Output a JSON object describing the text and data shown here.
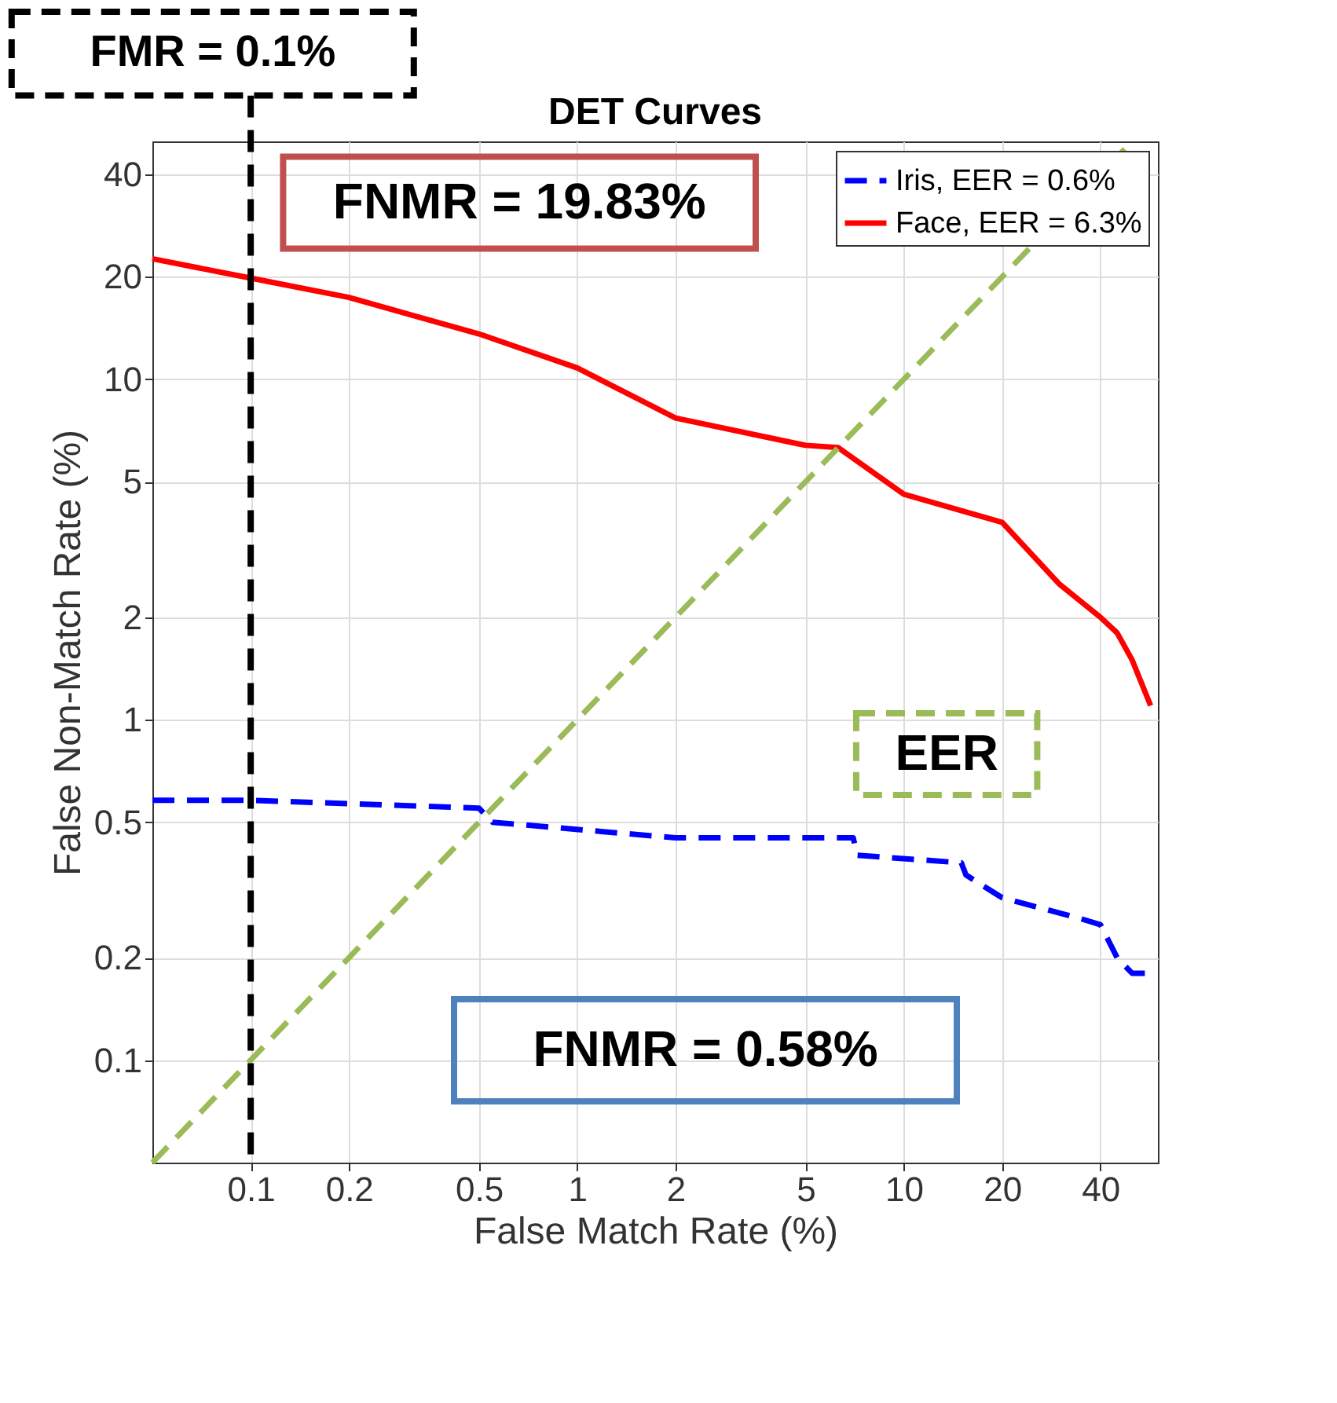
{
  "chart_data": {
    "type": "line",
    "title": "DET Curves",
    "xlabel": "False Match Rate (%)",
    "ylabel": "False Non-Match Rate (%)",
    "xlim": [
      0.05,
      60
    ],
    "ylim": [
      0.05,
      50
    ],
    "xticks": [
      0.1,
      0.2,
      0.5,
      1,
      2,
      5,
      10,
      20,
      40
    ],
    "yticks": [
      0.1,
      0.2,
      0.5,
      1,
      2,
      5,
      10,
      20,
      40
    ],
    "grid": true,
    "log": "xy",
    "legend": "top right",
    "series": [
      {
        "name": "Iris, EER = 0.6%",
        "color": "#0000ff",
        "line_style": "dashed",
        "x": [
          0.05,
          0.1,
          0.5,
          0.55,
          2,
          7,
          7.2,
          15,
          15.5,
          20,
          35,
          40,
          45,
          50,
          57
        ],
        "values": [
          0.58,
          0.58,
          0.55,
          0.5,
          0.45,
          0.45,
          0.4,
          0.38,
          0.35,
          0.3,
          0.26,
          0.25,
          0.2,
          0.18,
          0.18
        ]
      },
      {
        "name": "Face, EER = 6.3%",
        "color": "#ff0000",
        "line_style": "solid",
        "x": [
          0.05,
          0.1,
          0.2,
          0.5,
          1,
          2,
          5,
          6.3,
          10,
          20,
          30,
          40,
          45,
          50,
          57
        ],
        "values": [
          22.6,
          19.83,
          17.4,
          13.6,
          10.8,
          7.7,
          6.4,
          6.3,
          4.6,
          3.8,
          2.5,
          2.0,
          1.8,
          1.5,
          1.1
        ]
      },
      {
        "type": "line",
        "color": "#9bbb59",
        "line_style": "dashed",
        "x": [
          0.05,
          50
        ],
        "values": [
          0.05,
          50
        ]
      }
    ],
    "ref_lines": [
      {
        "axis": "x",
        "value": 0.1,
        "label": "FMR = 0.1%",
        "color": "#000000",
        "line_style": "dashed"
      }
    ],
    "annotations": [
      "FNMR = 19.83%",
      "FNMR = 0.58%",
      "EER"
    ]
  }
}
